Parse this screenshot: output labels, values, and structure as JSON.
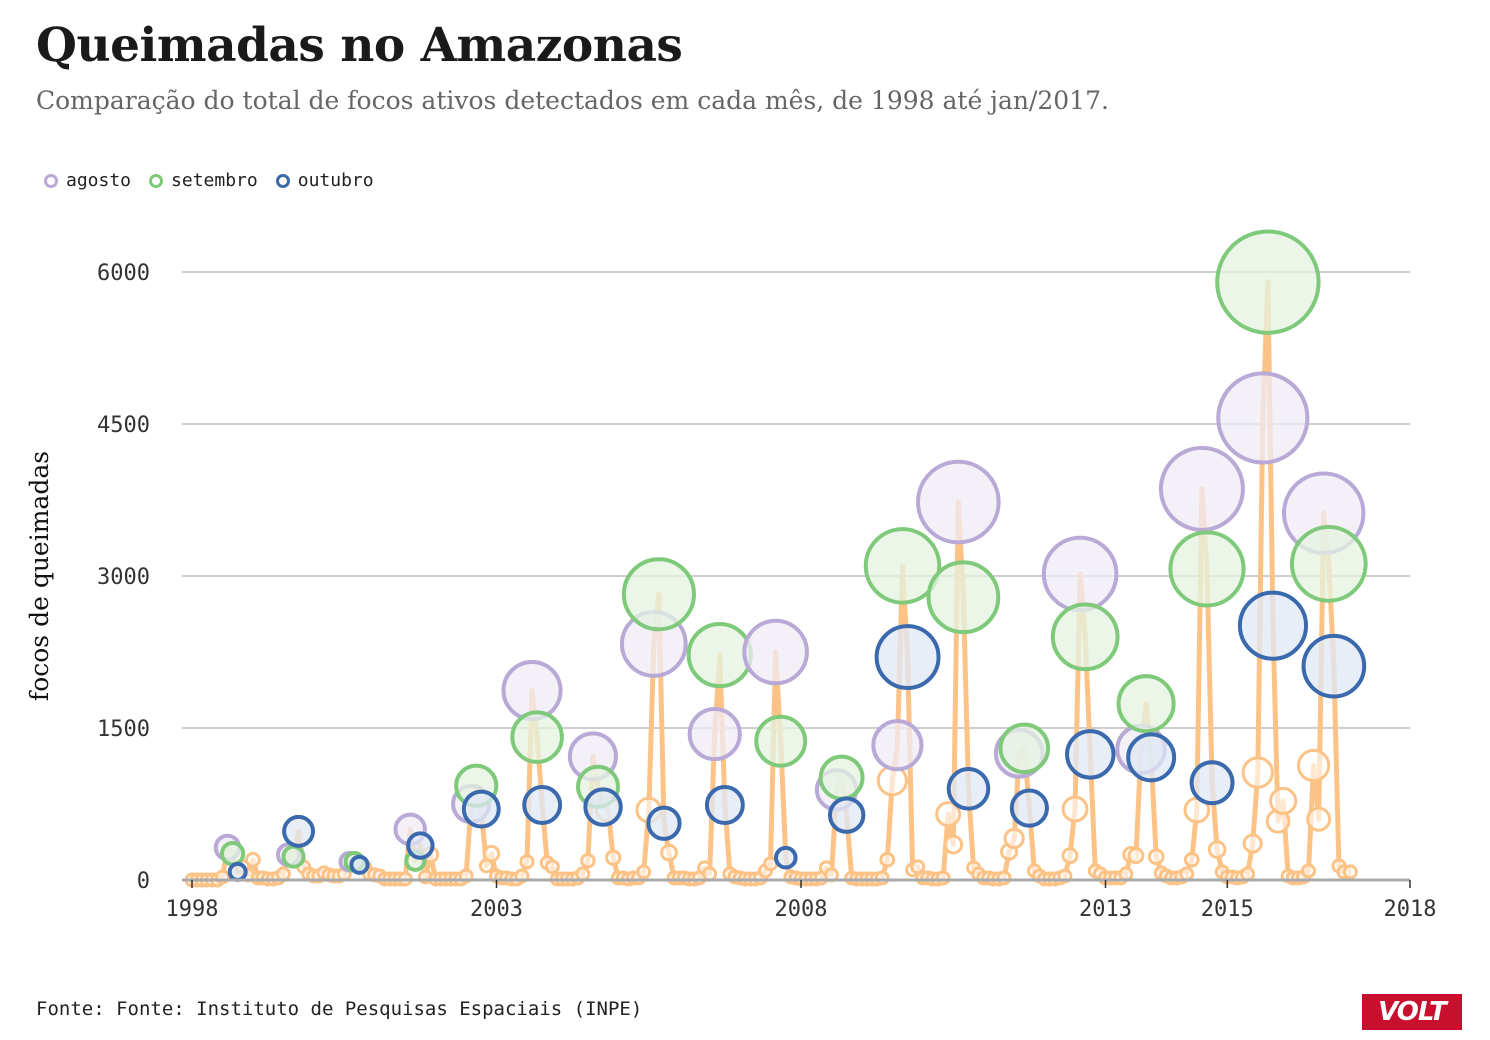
{
  "title": "Queimadas no Amazonas",
  "subtitle": "Comparação do total de focos ativos detectados em cada mês, de 1998 até jan/2017.",
  "legend": [
    {
      "label": "agosto",
      "color": "#b9a9d6",
      "fill": "#efebf6"
    },
    {
      "label": "setembro",
      "color": "#7fca7a",
      "fill": "#e4f3e1"
    },
    {
      "label": "outubro",
      "color": "#3a69ad",
      "fill": "#dfe8f4"
    }
  ],
  "source": "Fonte: Fonte: Instituto de Pesquisas Espaciais (INPE)",
  "logo": "VOLT",
  "chart_data": {
    "type": "line",
    "ylabel": "focos de queimadas",
    "xlabel": "",
    "xlim": [
      1998,
      2018
    ],
    "ylim": [
      0,
      6000
    ],
    "x_ticks": [
      "1998",
      "2003",
      "2008",
      "2013",
      "2015",
      "2018"
    ],
    "y_ticks": [
      "0",
      "1500",
      "3000",
      "4500",
      "6000"
    ],
    "grid": true,
    "legend_position": "top-left",
    "line_color": "#fdc286",
    "peaks": [
      {
        "year": 1998,
        "aug": 320,
        "sep": 260,
        "oct": 80
      },
      {
        "year": 1999,
        "aug": 250,
        "sep": 230,
        "oct": 480
      },
      {
        "year": 2000,
        "aug": 180,
        "sep": 180,
        "oct": 150
      },
      {
        "year": 2001,
        "aug": 500,
        "sep": 190,
        "oct": 340
      },
      {
        "year": 2002,
        "aug": 750,
        "sep": 930,
        "oct": 700
      },
      {
        "year": 2003,
        "aug": 1870,
        "sep": 1410,
        "oct": 740
      },
      {
        "year": 2004,
        "aug": 1220,
        "sep": 920,
        "oct": 720
      },
      {
        "year": 2005,
        "aug": 2330,
        "sep": 2820,
        "oct": 560
      },
      {
        "year": 2006,
        "aug": 1440,
        "sep": 2220,
        "oct": 740
      },
      {
        "year": 2007,
        "aug": 2250,
        "sep": 1370,
        "oct": 220
      },
      {
        "year": 2008,
        "aug": 890,
        "sep": 1010,
        "oct": 640
      },
      {
        "year": 2009,
        "aug": 1330,
        "sep": 3100,
        "oct": 2200
      },
      {
        "year": 2010,
        "aug": 3730,
        "sep": 2790,
        "oct": 900
      },
      {
        "year": 2011,
        "aug": 1250,
        "sep": 1300,
        "oct": 710
      },
      {
        "year": 2012,
        "aug": 3020,
        "sep": 2400,
        "oct": 1240
      },
      {
        "year": 2013,
        "aug": 1290,
        "sep": 1740,
        "oct": 1210
      },
      {
        "year": 2014,
        "aug": 3860,
        "sep": 3070,
        "oct": 960
      },
      {
        "year": 2015,
        "aug": 4560,
        "sep": 5900,
        "oct": 2510
      },
      {
        "year": 2016,
        "aug": 3620,
        "sep": 3120,
        "oct": 2110
      }
    ],
    "others": [
      {
        "year": 1998,
        "months": [
          0,
          0,
          0,
          0,
          0,
          0,
          30,
          130,
          50,
          0,
          0
        ]
      },
      {
        "year": 1999,
        "months": [
          200,
          20,
          20,
          10,
          10,
          20,
          60,
          130,
          60,
          10,
          10
        ]
      },
      {
        "year": 2000,
        "months": [
          40,
          40,
          70,
          50,
          40,
          40,
          60,
          130,
          60,
          40,
          20
        ]
      },
      {
        "year": 2001,
        "months": [
          50,
          40,
          10,
          10,
          10,
          10,
          10,
          30,
          250,
          230,
          30
        ]
      },
      {
        "year": 2002,
        "months": [
          10,
          10,
          10,
          10,
          10,
          10,
          40,
          140,
          260,
          180,
          60
        ]
      },
      {
        "year": 2003,
        "months": [
          40,
          20,
          20,
          10,
          10,
          40,
          180,
          170,
          130,
          30,
          10
        ]
      },
      {
        "year": 2004,
        "months": [
          10,
          10,
          10,
          10,
          20,
          60,
          190,
          700,
          220,
          70,
          20
        ]
      },
      {
        "year": 2005,
        "months": [
          20,
          20,
          10,
          20,
          20,
          80,
          690,
          270,
          20,
          20,
          10
        ]
      },
      {
        "year": 2006,
        "months": [
          20,
          20,
          10,
          10,
          20,
          120,
          60,
          60,
          30,
          20,
          10
        ]
      },
      {
        "year": 2007,
        "months": [
          20,
          10,
          10,
          10,
          20,
          90,
          160,
          30,
          20,
          10,
          10
        ]
      },
      {
        "year": 2008,
        "months": [
          10,
          10,
          10,
          10,
          20,
          120,
          50,
          20,
          10,
          10,
          10
        ]
      },
      {
        "year": 2009,
        "months": [
          10,
          10,
          10,
          10,
          20,
          200,
          980,
          100,
          130,
          80,
          20
        ]
      },
      {
        "year": 2010,
        "months": [
          20,
          20,
          10,
          10,
          20,
          650,
          350,
          120,
          60,
          40,
          20
        ]
      },
      {
        "year": 2011,
        "months": [
          20,
          20,
          10,
          10,
          20,
          280,
          410,
          90,
          40,
          20,
          10
        ]
      },
      {
        "year": 2012,
        "months": [
          10,
          10,
          10,
          20,
          40,
          240,
          700,
          90,
          60,
          30,
          20
        ]
      },
      {
        "year": 2013,
        "months": [
          20,
          20,
          20,
          20,
          60,
          250,
          240,
          230,
          70,
          40,
          20
        ]
      },
      {
        "year": 2014,
        "months": [
          40,
          20,
          20,
          30,
          60,
          200,
          690,
          300,
          80,
          40,
          20
        ]
      },
      {
        "year": 2015,
        "months": [
          30,
          30,
          20,
          30,
          60,
          360,
          1060,
          580,
          780,
          290,
          120
        ]
      },
      {
        "year": 2016,
        "months": [
          40,
          20,
          20,
          30,
          90,
          1130,
          600,
          140,
          80
        ]
      }
    ]
  }
}
